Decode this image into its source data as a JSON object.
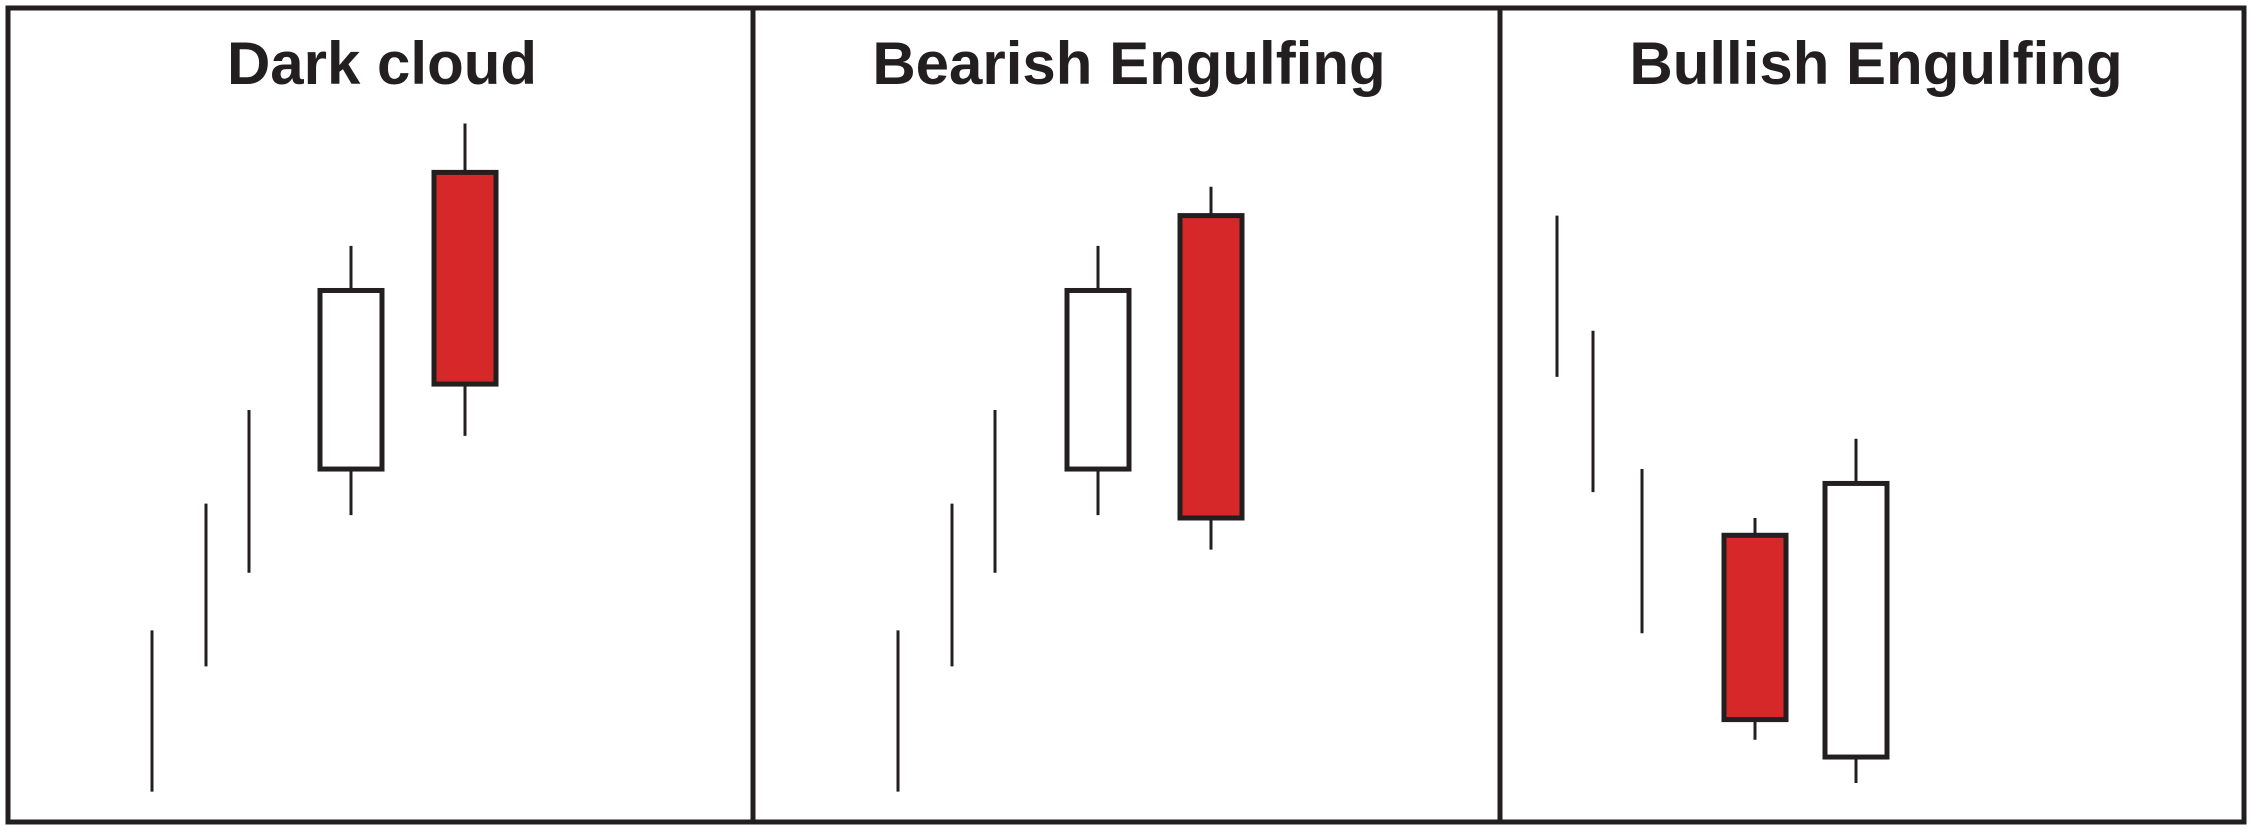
{
  "colors": {
    "ink": "#231f20",
    "bearish_fill": "#d62828",
    "bullish_fill": "#ffffff",
    "background": "#ffffff"
  },
  "panels": [
    {
      "title": "Dark cloud",
      "candles": [
        {
          "kind": "line",
          "high": 12.2,
          "low": 1.0
        },
        {
          "kind": "line",
          "high": 21.0,
          "low": 9.7
        },
        {
          "kind": "line",
          "high": 27.5,
          "low": 16.2
        },
        {
          "kind": "bullish",
          "high": 38.9,
          "open": 23.4,
          "close": 35.8,
          "low": 20.2
        },
        {
          "kind": "bearish",
          "high": 47.4,
          "open": 44.0,
          "close": 29.3,
          "low": 25.7
        }
      ]
    },
    {
      "title": "Bearish Engulfing",
      "candles": [
        {
          "kind": "line",
          "high": 12.2,
          "low": 1.0
        },
        {
          "kind": "line",
          "high": 21.0,
          "low": 9.7
        },
        {
          "kind": "line",
          "high": 27.5,
          "low": 16.2
        },
        {
          "kind": "bullish",
          "high": 38.9,
          "open": 23.4,
          "close": 35.8,
          "low": 20.2
        },
        {
          "kind": "bearish",
          "high": 43.0,
          "open": 41.0,
          "close": 20.0,
          "low": 17.8
        }
      ]
    },
    {
      "title": "Bullish Engulfing",
      "candles": [
        {
          "kind": "line",
          "high": 41.0,
          "low": 29.8
        },
        {
          "kind": "line",
          "high": 33.0,
          "low": 21.8
        },
        {
          "kind": "line",
          "high": 23.4,
          "low": 12.0
        },
        {
          "kind": "bearish",
          "high": 20.0,
          "open": 18.8,
          "close": 6.0,
          "low": 4.6
        },
        {
          "kind": "bullish",
          "high": 25.5,
          "open": 3.4,
          "close": 22.4,
          "low": 1.6
        }
      ]
    }
  ]
}
